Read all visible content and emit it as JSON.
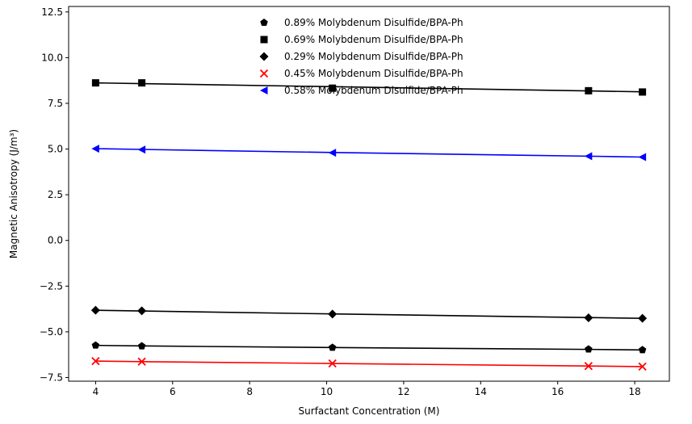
{
  "chart_data": {
    "type": "scatter",
    "title": "",
    "xlabel": "Surfactant Concentration (M)",
    "ylabel": "Magnetic Anisotropy (J/m³)",
    "xlim": [
      3.3,
      18.9
    ],
    "ylim": [
      -7.7,
      12.8
    ],
    "xticks": [
      4,
      6,
      8,
      10,
      12,
      14,
      16,
      18
    ],
    "xtick_labels": [
      "4",
      "6",
      "8",
      "10",
      "12",
      "14",
      "16",
      "18"
    ],
    "yticks": [
      -7.5,
      -5.0,
      -2.5,
      0.0,
      2.5,
      5.0,
      7.5,
      10.0,
      12.5
    ],
    "ytick_labels": [
      "−7.5",
      "−5.0",
      "−2.5",
      "0.0",
      "2.5",
      "5.0",
      "7.5",
      "10.0",
      "12.5"
    ],
    "grid": false,
    "legend_position": "top-center",
    "x": [
      4.0,
      5.2,
      10.15,
      16.8,
      18.2
    ],
    "series": [
      {
        "name": "0.89% Molybdenum Disulfide/BPA-Ph",
        "marker": "pentagon",
        "color": "#000000",
        "values": [
          -5.74,
          -5.78,
          -5.86,
          -5.95,
          -5.99
        ],
        "fit": [
          -5.74,
          -5.77,
          -5.86,
          -5.96,
          -5.99
        ]
      },
      {
        "name": "0.69% Molybdenum Disulfide/BPA-Ph",
        "marker": "square",
        "color": "#000000",
        "values": [
          8.62,
          8.62,
          8.33,
          8.19,
          8.12
        ],
        "fit": [
          8.62,
          8.58,
          8.41,
          8.18,
          8.13
        ]
      },
      {
        "name": "0.29% Molybdenum Disulfide/BPA-Ph",
        "marker": "diamond",
        "color": "#000000",
        "values": [
          -3.82,
          -3.85,
          -4.03,
          -4.23,
          -4.26
        ],
        "fit": [
          -3.82,
          -3.86,
          -4.02,
          -4.22,
          -4.26
        ]
      },
      {
        "name": "0.45% Molybdenum Disulfide/BPA-Ph",
        "marker": "x",
        "color": "#ff0000",
        "values": [
          -6.6,
          -6.63,
          -6.73,
          -6.87,
          -6.9
        ],
        "fit": [
          -6.6,
          -6.63,
          -6.73,
          -6.87,
          -6.9
        ]
      },
      {
        "name": "0.58% Molybdenum Disulfide/BPA-Ph",
        "marker": "triangle-left",
        "color": "#0000ff",
        "values": [
          5.02,
          4.97,
          4.8,
          4.61,
          4.56
        ],
        "fit": [
          5.02,
          4.98,
          4.81,
          4.61,
          4.56
        ]
      }
    ]
  }
}
